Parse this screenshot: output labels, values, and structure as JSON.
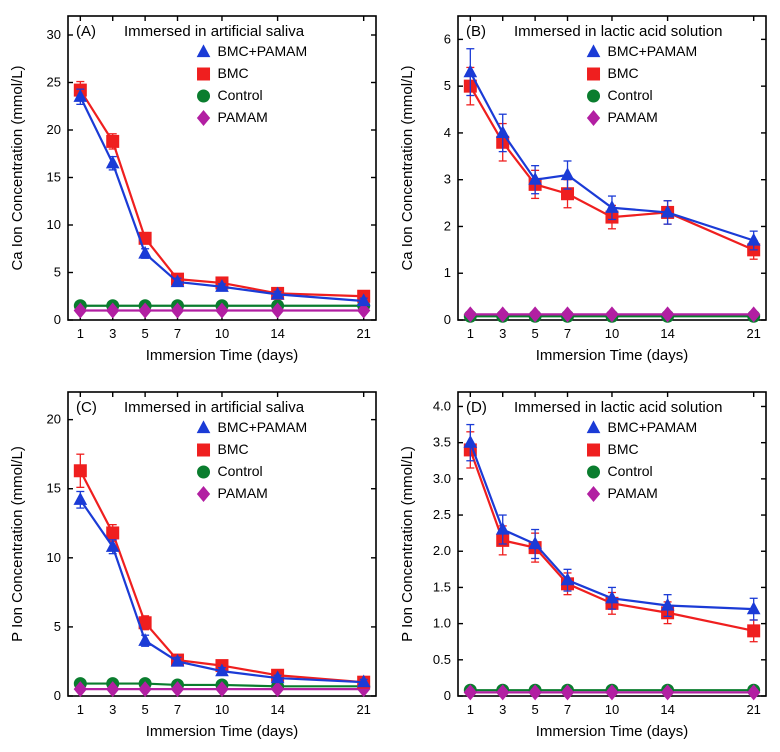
{
  "colors": {
    "bmc_pamam": "#1b3bd6",
    "bmc": "#ef1f1f",
    "control": "#0a7d2e",
    "pamam": "#b21fa2",
    "axis": "#000000",
    "tick": "#000000",
    "text": "#000000",
    "bg": "#ffffff",
    "errbar_bmc_pamam": "#1b3bd6",
    "errbar_bmc": "#ef1f1f"
  },
  "legend": {
    "items": [
      {
        "label": "BMC+PAMAM",
        "marker": "triangle",
        "colorKey": "bmc_pamam"
      },
      {
        "label": "BMC",
        "marker": "square",
        "colorKey": "bmc"
      },
      {
        "label": "Control",
        "marker": "circle",
        "colorKey": "control"
      },
      {
        "label": "PAMAM",
        "marker": "diamond",
        "colorKey": "pamam"
      }
    ],
    "fontsize": 14
  },
  "x_axis": {
    "label": "Immersion Time (days)",
    "ticks": [
      1,
      3,
      5,
      7,
      10,
      14,
      21
    ],
    "min": 0,
    "max": 22,
    "label_fontsize": 15,
    "tick_fontsize": 13
  },
  "panels": {
    "A": {
      "tag": "(A)",
      "title": "Immersed in artificial saliva",
      "ylabel": "Ca Ion Concentration (mmol/L)",
      "ymin": 0,
      "ymax": 32,
      "ystep": 5,
      "series": {
        "bmc_pamam": {
          "y": [
            23.5,
            16.5,
            7.0,
            4.0,
            3.5,
            2.7,
            2.0
          ],
          "err": [
            0.8,
            0.7,
            0.5,
            0.4,
            0.3,
            0.3,
            0.3
          ]
        },
        "bmc": {
          "y": [
            24.2,
            18.8,
            8.6,
            4.3,
            3.9,
            2.8,
            2.5
          ],
          "err": [
            0.9,
            0.8,
            0.6,
            0.4,
            0.4,
            0.3,
            0.4
          ]
        },
        "control": {
          "y": [
            1.5,
            1.5,
            1.5,
            1.5,
            1.5,
            1.5,
            1.5
          ],
          "err": [
            0.2,
            0.2,
            0.2,
            0.2,
            0.2,
            0.2,
            0.2
          ]
        },
        "pamam": {
          "y": [
            1.0,
            1.0,
            1.0,
            1.0,
            1.0,
            1.0,
            1.0
          ],
          "err": [
            0.2,
            0.2,
            0.2,
            0.2,
            0.2,
            0.2,
            0.2
          ]
        }
      }
    },
    "B": {
      "tag": "(B)",
      "title": "Immersed in lactic acid solution",
      "ylabel": "Ca Ion Concentration (mmol/L)",
      "ymin": 0,
      "ymax": 6.5,
      "ystep": 1,
      "series": {
        "bmc_pamam": {
          "y": [
            5.3,
            4.0,
            3.0,
            3.1,
            2.4,
            2.3,
            1.7
          ],
          "err": [
            0.5,
            0.4,
            0.3,
            0.3,
            0.25,
            0.25,
            0.2
          ]
        },
        "bmc": {
          "y": [
            5.0,
            3.8,
            2.9,
            2.7,
            2.2,
            2.3,
            1.5
          ],
          "err": [
            0.4,
            0.4,
            0.3,
            0.3,
            0.25,
            0.25,
            0.2
          ]
        },
        "control": {
          "y": [
            0.08,
            0.08,
            0.08,
            0.08,
            0.08,
            0.08,
            0.08
          ],
          "err": [
            0.05,
            0.05,
            0.05,
            0.05,
            0.05,
            0.05,
            0.05
          ]
        },
        "pamam": {
          "y": [
            0.12,
            0.12,
            0.12,
            0.12,
            0.12,
            0.12,
            0.12
          ],
          "err": [
            0.05,
            0.05,
            0.05,
            0.05,
            0.05,
            0.05,
            0.05
          ]
        }
      }
    },
    "C": {
      "tag": "(C)",
      "title": "Immersed in artificial saliva",
      "ylabel": "P Ion Concentration (mmol/L)",
      "ymin": 0,
      "ymax": 22,
      "ystep": 5,
      "series": {
        "bmc_pamam": {
          "y": [
            14.2,
            10.8,
            4.0,
            2.5,
            1.8,
            1.3,
            1.0
          ],
          "err": [
            0.6,
            0.5,
            0.4,
            0.3,
            0.25,
            0.2,
            0.2
          ]
        },
        "bmc": {
          "y": [
            16.3,
            11.8,
            5.3,
            2.6,
            2.2,
            1.5,
            1.0
          ],
          "err": [
            1.2,
            0.6,
            0.5,
            0.3,
            0.3,
            0.25,
            0.2
          ]
        },
        "control": {
          "y": [
            0.9,
            0.9,
            0.9,
            0.8,
            0.8,
            0.7,
            0.7
          ],
          "err": [
            0.15,
            0.15,
            0.15,
            0.15,
            0.15,
            0.15,
            0.15
          ]
        },
        "pamam": {
          "y": [
            0.5,
            0.5,
            0.5,
            0.5,
            0.5,
            0.5,
            0.5
          ],
          "err": [
            0.15,
            0.15,
            0.15,
            0.15,
            0.15,
            0.15,
            0.15
          ]
        }
      }
    },
    "D": {
      "tag": "(D)",
      "title": "Immersed in lactic acid solution",
      "ylabel": "P Ion Concentration (mmol/L)",
      "ymin": 0,
      "ymax": 4.2,
      "ystep": 0.5,
      "series": {
        "bmc_pamam": {
          "y": [
            3.5,
            2.3,
            2.1,
            1.6,
            1.35,
            1.25,
            1.2
          ],
          "err": [
            0.25,
            0.2,
            0.2,
            0.15,
            0.15,
            0.15,
            0.15
          ]
        },
        "bmc": {
          "y": [
            3.4,
            2.15,
            2.05,
            1.55,
            1.28,
            1.15,
            0.9
          ],
          "err": [
            0.25,
            0.2,
            0.2,
            0.15,
            0.15,
            0.15,
            0.15
          ]
        },
        "control": {
          "y": [
            0.08,
            0.08,
            0.08,
            0.08,
            0.08,
            0.08,
            0.08
          ],
          "err": [
            0.04,
            0.04,
            0.04,
            0.04,
            0.04,
            0.04,
            0.04
          ]
        },
        "pamam": {
          "y": [
            0.05,
            0.05,
            0.05,
            0.05,
            0.05,
            0.05,
            0.05
          ],
          "err": [
            0.04,
            0.04,
            0.04,
            0.04,
            0.04,
            0.04,
            0.04
          ]
        }
      }
    }
  },
  "style": {
    "line_width": 2.2,
    "marker_size": 6,
    "err_cap": 4,
    "title_fontsize": 15,
    "tag_fontsize": 15,
    "ylabel_fontsize": 15,
    "tick_len": 5
  }
}
